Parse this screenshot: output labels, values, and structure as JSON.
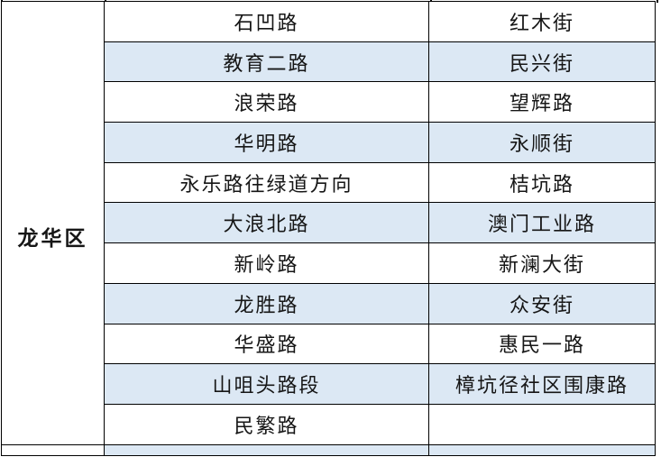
{
  "table": {
    "district_label": "龙华区",
    "rows": [
      {
        "road": "石凹路",
        "street": "红木街",
        "shaded": false
      },
      {
        "road": "教育二路",
        "street": "民兴街",
        "shaded": true
      },
      {
        "road": "浪荣路",
        "street": "望辉路",
        "shaded": false
      },
      {
        "road": "华明路",
        "street": "永顺街",
        "shaded": true
      },
      {
        "road": "永乐路往绿道方向",
        "street": "桔坑路",
        "shaded": false
      },
      {
        "road": "大浪北路",
        "street": "澳门工业路",
        "shaded": true
      },
      {
        "road": "新岭路",
        "street": "新澜大街",
        "shaded": false
      },
      {
        "road": "龙胜路",
        "street": "众安街",
        "shaded": true
      },
      {
        "road": "华盛路",
        "street": "惠民一路",
        "shaded": false
      },
      {
        "road": "山咀头路段",
        "street": "樟坑径社区围康路",
        "shaded": true
      },
      {
        "road": "民繁路",
        "street": "",
        "shaded": false
      }
    ],
    "colors": {
      "row_shade": "#dce8f4",
      "grid_border": "#000000",
      "text": "#161616"
    }
  }
}
